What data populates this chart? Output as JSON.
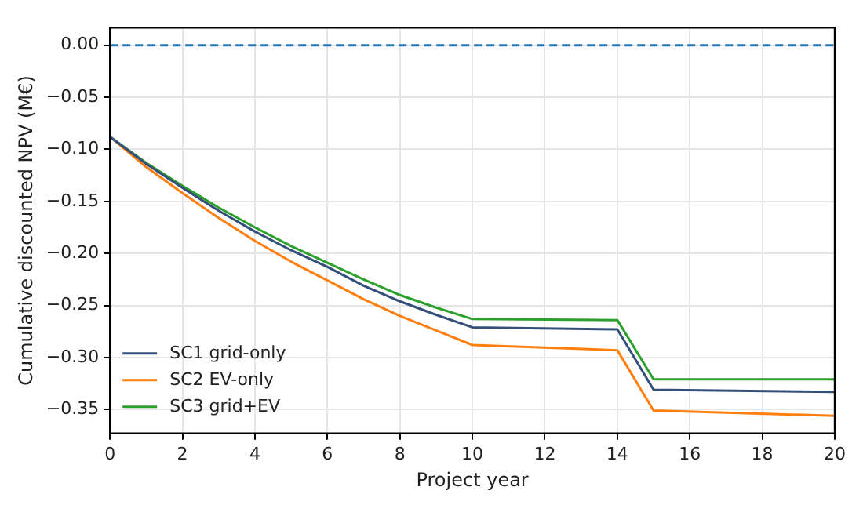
{
  "chart_data": {
    "type": "line",
    "xlabel": "Project year",
    "ylabel": "Cumulative discounted NPV (M€)",
    "x": [
      0,
      1,
      2,
      3,
      4,
      5,
      6,
      7,
      8,
      9,
      10,
      14,
      15,
      20
    ],
    "series": [
      {
        "name": "SC1 grid-only",
        "color": "#34507a",
        "values": [
          -0.088,
          -0.114,
          -0.137,
          -0.159,
          -0.179,
          -0.197,
          -0.213,
          -0.231,
          -0.246,
          -0.259,
          -0.271,
          -0.273,
          -0.331,
          -0.333
        ]
      },
      {
        "name": "SC2 EV-only",
        "color": "#ff7f0e",
        "values": [
          -0.088,
          -0.117,
          -0.142,
          -0.166,
          -0.188,
          -0.208,
          -0.226,
          -0.244,
          -0.26,
          -0.274,
          -0.288,
          -0.293,
          -0.351,
          -0.356
        ]
      },
      {
        "name": "SC3 grid+EV",
        "color": "#2ca02c",
        "values": [
          -0.088,
          -0.113,
          -0.135,
          -0.156,
          -0.175,
          -0.193,
          -0.209,
          -0.225,
          -0.24,
          -0.252,
          -0.263,
          -0.264,
          -0.321,
          -0.321
        ]
      }
    ],
    "xlim": [
      0,
      20
    ],
    "xticks": [
      0,
      2,
      4,
      6,
      8,
      10,
      12,
      14,
      16,
      18,
      20
    ],
    "ylim": [
      -0.373,
      0.017
    ],
    "yticks": [
      {
        "value": 0,
        "label": "0.00"
      },
      {
        "value": -0.05,
        "label": "−0.05"
      },
      {
        "value": -0.1,
        "label": "−0.10"
      },
      {
        "value": -0.15,
        "label": "−0.15"
      },
      {
        "value": -0.2,
        "label": "−0.20"
      },
      {
        "value": -0.25,
        "label": "−0.25"
      },
      {
        "value": -0.3,
        "label": "−0.30"
      },
      {
        "value": -0.35,
        "label": "−0.35"
      }
    ],
    "ref_lines": [
      {
        "axis": "y",
        "value": 0,
        "color": "#1f77b4",
        "line_style": "dashed"
      }
    ],
    "grid": true,
    "legend": "bottom left",
    "line_style": "solid",
    "marker": "none"
  }
}
